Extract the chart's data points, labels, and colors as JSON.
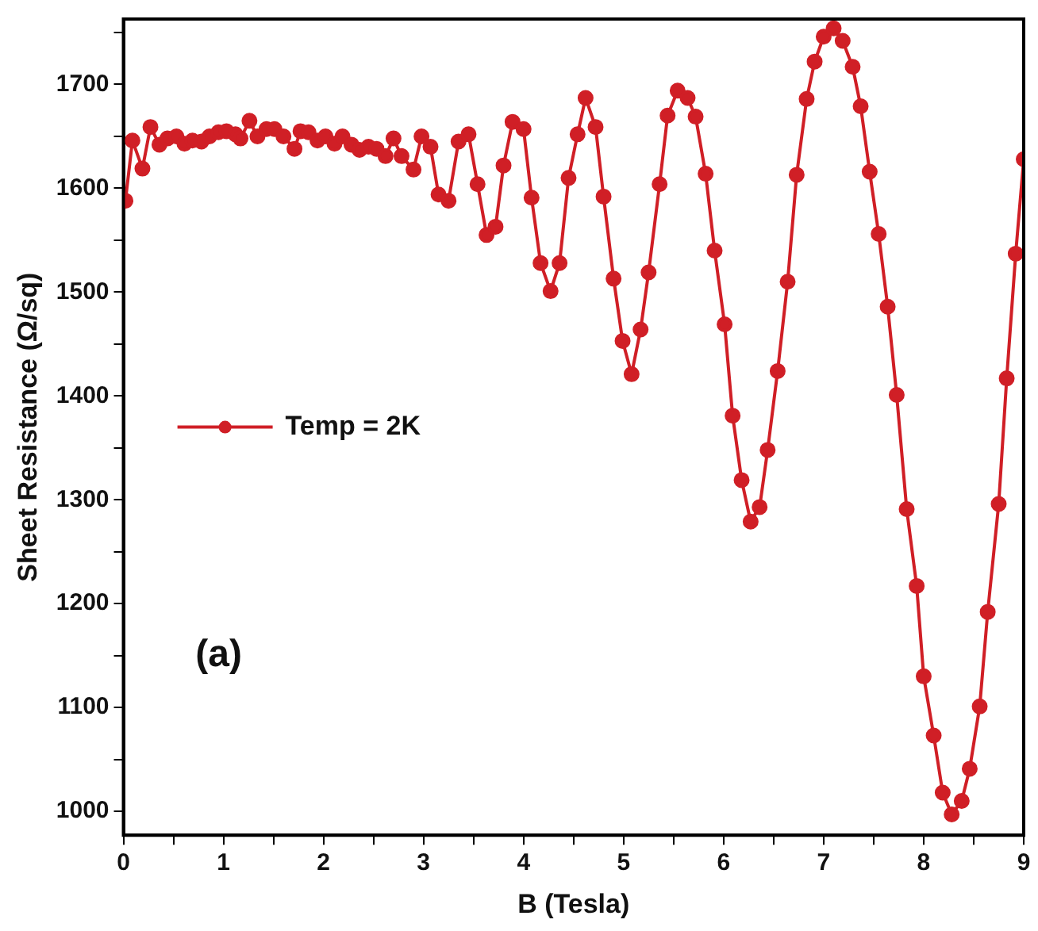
{
  "chart_data": {
    "type": "line",
    "xlabel": "B (Tesla)",
    "ylabel": "Sheet Resistance (Ω/sq)",
    "annotations": [
      "(a)"
    ],
    "xlim": [
      0,
      9
    ],
    "ylim": [
      977,
      1763
    ],
    "xticks": [
      0,
      {
        "value": 0.5,
        "label": null
      },
      1,
      {
        "value": 1.5,
        "label": null
      },
      2,
      {
        "value": 2.5,
        "label": null
      },
      3,
      {
        "value": 3.5,
        "label": null
      },
      4,
      {
        "value": 4.5,
        "label": null
      },
      5,
      {
        "value": 5.5,
        "label": null
      },
      6,
      {
        "value": 6.5,
        "label": null
      },
      7,
      {
        "value": 7.5,
        "label": null
      },
      8,
      {
        "value": 8.5,
        "label": null
      },
      9
    ],
    "yticks": [
      1000,
      {
        "value": 1050,
        "label": null
      },
      1100,
      {
        "value": 1150,
        "label": null
      },
      1200,
      {
        "value": 1250,
        "label": null
      },
      1300,
      {
        "value": 1350,
        "label": null
      },
      1400,
      {
        "value": 1450,
        "label": null
      },
      1500,
      {
        "value": 1550,
        "label": null
      },
      1600,
      {
        "value": 1650,
        "label": null
      },
      1700,
      {
        "value": 1750,
        "label": null
      }
    ],
    "legend": "left",
    "marker": "circle",
    "grid": false,
    "series": [
      {
        "name": "Temp = 2K",
        "color": "#d01f26",
        "x": [
          0.02,
          0.09,
          0.19,
          0.27,
          0.36,
          0.44,
          0.53,
          0.61,
          0.69,
          0.78,
          0.86,
          0.95,
          1.03,
          1.12,
          1.17,
          1.26,
          1.34,
          1.43,
          1.51,
          1.6,
          1.71,
          1.77,
          1.85,
          1.94,
          2.02,
          2.11,
          2.19,
          2.28,
          2.36,
          2.45,
          2.53,
          2.62,
          2.7,
          2.78,
          2.9,
          2.98,
          3.07,
          3.15,
          3.25,
          3.35,
          3.45,
          3.54,
          3.63,
          3.72,
          3.8,
          3.89,
          4.0,
          4.08,
          4.17,
          4.27,
          4.36,
          4.45,
          4.54,
          4.62,
          4.72,
          4.8,
          4.9,
          4.99,
          5.08,
          5.17,
          5.25,
          5.36,
          5.44,
          5.54,
          5.64,
          5.72,
          5.82,
          5.91,
          6.01,
          6.09,
          6.18,
          6.27,
          6.36,
          6.44,
          6.54,
          6.64,
          6.73,
          6.83,
          6.91,
          7.0,
          7.1,
          7.19,
          7.29,
          7.37,
          7.46,
          7.55,
          7.64,
          7.73,
          7.83,
          7.93,
          8.0,
          8.1,
          8.19,
          8.28,
          8.38,
          8.46,
          8.56,
          8.64,
          8.75,
          8.83,
          8.92,
          9.0
        ],
        "values": [
          1588,
          1646,
          1619,
          1659,
          1642,
          1648,
          1650,
          1643,
          1646,
          1645,
          1650,
          1654,
          1655,
          1652,
          1648,
          1665,
          1650,
          1657,
          1657,
          1650,
          1638,
          1655,
          1654,
          1646,
          1650,
          1643,
          1650,
          1642,
          1637,
          1640,
          1638,
          1631,
          1648,
          1631,
          1618,
          1650,
          1640,
          1594,
          1588,
          1645,
          1652,
          1604,
          1555,
          1563,
          1622,
          1664,
          1657,
          1591,
          1528,
          1501,
          1528,
          1610,
          1652,
          1687,
          1659,
          1592,
          1513,
          1453,
          1421,
          1464,
          1519,
          1604,
          1670,
          1694,
          1687,
          1669,
          1614,
          1540,
          1469,
          1381,
          1319,
          1279,
          1293,
          1348,
          1424,
          1510,
          1613,
          1686,
          1722,
          1746,
          1754,
          1742,
          1717,
          1679,
          1616,
          1556,
          1486,
          1401,
          1291,
          1217,
          1130,
          1073,
          1018,
          997,
          1010,
          1041,
          1101,
          1192,
          1296,
          1417,
          1537,
          1628
        ]
      }
    ]
  }
}
